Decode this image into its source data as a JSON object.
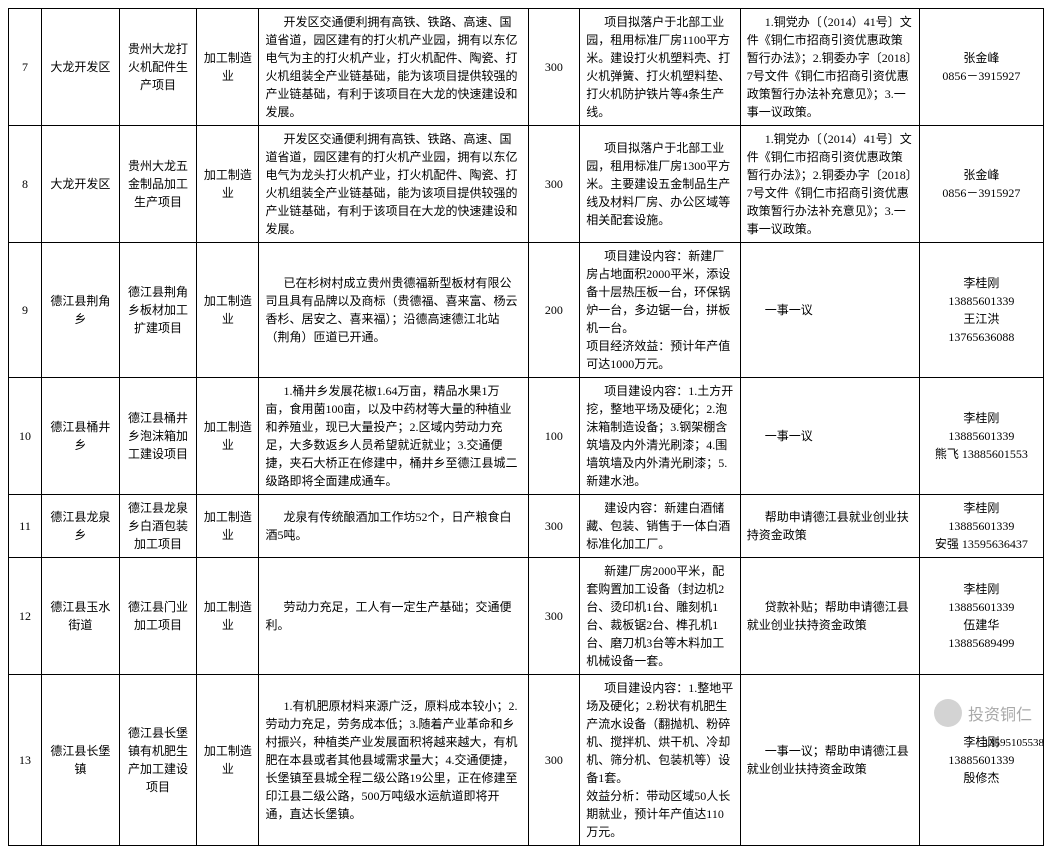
{
  "table": {
    "col_widths_pct": [
      3.2,
      7.5,
      7.5,
      6.0,
      26.0,
      5.0,
      15.5,
      17.3,
      12.0
    ],
    "rows": [
      {
        "num": "7",
        "region": "大龙开发区",
        "project": "贵州大龙打火机配件生产项目",
        "industry": "加工制造业",
        "advantage": "开发区交通便利拥有高铁、铁路、高速、国道省道，园区建有的打火机产业园，拥有以东亿电气为主的打火机产业，打火机配件、陶瓷、打火机组装全产业链基础，能为该项目提供较强的产业链基础，有利于该项目在大龙的快速建设和发展。",
        "invest": "300",
        "content": "项目拟落户于北部工业园，租用标准厂房1100平方米。建设打火机塑料壳、打火机弹簧、打火机塑料垫、打火机防护铁片等4条生产线。",
        "policy": "1.铜党办〔（2014）41号〕文件《铜仁市招商引资优惠政策暂行办法》；2.铜委办字〔2018〕7号文件《铜仁市招商引资优惠政策暂行办法补充意见》；3.一事一议政策。",
        "contact": "张金峰\n0856－3915927"
      },
      {
        "num": "8",
        "region": "大龙开发区",
        "project": "贵州大龙五金制品加工生产项目",
        "industry": "加工制造业",
        "advantage": "开发区交通便利拥有高铁、铁路、高速、国道省道，园区建有的打火机产业园，拥有以东亿电气为龙头打火机产业，打火机配件、陶瓷、打火机组装全产业链基础，能为该项目提供较强的产业链基础，有利于该项目在大龙的快速建设和发展。",
        "invest": "300",
        "content": "项目拟落户于北部工业园，租用标准厂房1300平方米。主要建设五金制品生产线及材料厂房、办公区域等相关配套设施。",
        "policy": "1.铜党办〔（2014）41号〕文件《铜仁市招商引资优惠政策暂行办法》；2.铜委办字〔2018〕7号文件《铜仁市招商引资优惠政策暂行办法补充意见》；3.一事一议政策。",
        "contact": "张金峰\n0856－3915927"
      },
      {
        "num": "9",
        "region": "德江县荆角乡",
        "project": "德江县荆角乡板材加工扩建项目",
        "industry": "加工制造业",
        "advantage": "已在杉树村成立贵州贵德福新型板材有限公司且具有品牌以及商标（贵德福、喜来富、杨云香杉、居安之、喜来福）；沿德高速德江北站（荆角）匝道已开通。",
        "invest": "200",
        "content": "项目建设内容：新建厂房占地面积2000平米，添设备十层热压板一台，环保锅炉一台，多边锯一台，拼板机一台。\n项目经济效益：预计年产值可达1000万元。",
        "policy": "一事一议",
        "contact": "李桂刚\n13885601339\n王江洪\n13765636088"
      },
      {
        "num": "10",
        "region": "德江县桶井乡",
        "project": "德江县桶井乡泡沫箱加工建设项目",
        "industry": "加工制造业",
        "advantage": "1.桶井乡发展花椒1.64万亩，精品水果1万亩，食用菌100亩，以及中药材等大量的种植业和养殖业，现已大量投产；2.区域内劳动力充足，大多数返乡人员希望就近就业；3.交通便捷，夹石大桥正在修建中，桶井乡至德江县城二级路即将全面建成通车。",
        "invest": "100",
        "content": "项目建设内容：1.土方开挖，整地平场及硬化；2.泡沫箱制造设备；3.钢架棚含筑墙及内外清光刷漆；4.围墙筑墙及内外清光刷漆；5.新建水池。",
        "policy": "一事一议",
        "contact": "李桂刚\n13885601339\n熊飞 13885601553"
      },
      {
        "num": "11",
        "region": "德江县龙泉乡",
        "project": "德江县龙泉乡白酒包装加工项目",
        "industry": "加工制造业",
        "advantage": "龙泉有传统酿酒加工作坊52个，日产粮食白酒5吨。",
        "invest": "300",
        "content": "建设内容：新建白酒储藏、包装、销售于一体白酒标准化加工厂。",
        "policy": "帮助申请德江县就业创业扶持资金政策",
        "contact": "李桂刚\n13885601339\n安强 13595636437"
      },
      {
        "num": "12",
        "region": "德江县玉水街道",
        "project": "德江县门业加工项目",
        "industry": "加工制造业",
        "advantage": "劳动力充足，工人有一定生产基础；交通便利。",
        "invest": "300",
        "content": "新建厂房2000平米，配套购置加工设备（封边机2台、烫印机1台、雕刻机1台、裁板锯2台、榫孔机1台、磨刀机3台等木料加工机械设备一套。",
        "policy": "贷款补贴；帮助申请德江县就业创业扶持资金政策",
        "contact": "李桂刚\n13885601339\n伍建华\n13885689499"
      },
      {
        "num": "13",
        "region": "德江县长堡镇",
        "project": "德江县长堡镇有机肥生产加工建设项目",
        "industry": "加工制造业",
        "advantage": "1.有机肥原材料来源广泛，原料成本较小；2.劳动力充足，劳务成本低；3.随着产业革命和乡村振兴，种植类产业发展面积将越来越大，有机肥在本县或者其他县域需求量大；4.交通便捷，长堡镇至县城全程二级公路19公里，正在修建至印江县二级公路，500万吨级水运航道即将开通，直达长堡镇。",
        "invest": "300",
        "content": "项目建设内容：1.整地平场及硬化；2.粉状有机肥生产流水设备（翻抛机、粉碎机、搅拌机、烘干机、冷却机、筛分机、包装机等）设备1套。\n效益分析：带动区域50人长期就业，预计年产值达110万元。",
        "policy": "一事一议；帮助申请德江县就业创业扶持资金政策",
        "contact": "李桂刚\n13885601339\n殷修杰"
      }
    ]
  },
  "watermark": "投资铜仁",
  "extra_phone": "13595105538"
}
